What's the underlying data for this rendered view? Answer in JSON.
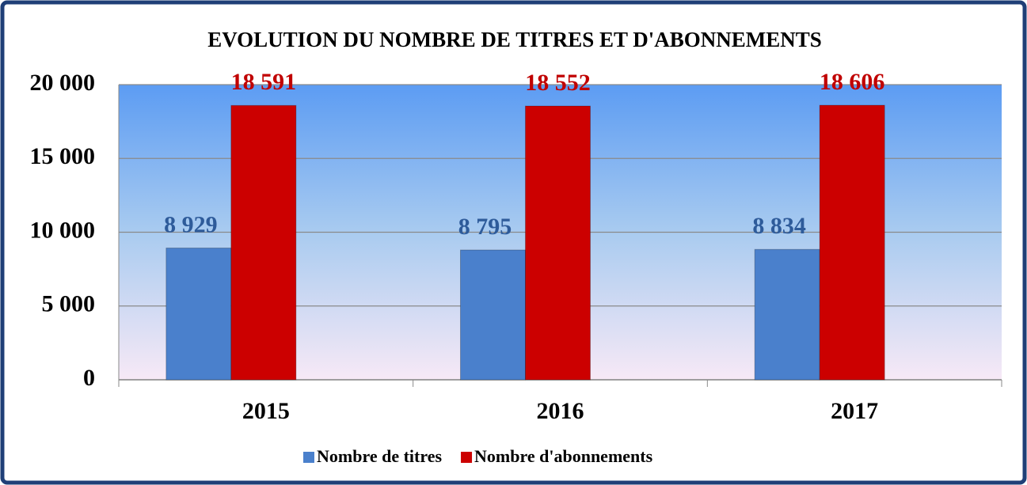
{
  "chart_data": {
    "type": "bar",
    "title": "EVOLUTION DU NOMBRE DE TITRES ET D'ABONNEMENTS",
    "categories": [
      "2015",
      "2016",
      "2017"
    ],
    "series": [
      {
        "name": "Nombre de titres",
        "color": "#4a80cc",
        "label_color": "#2e5b9a",
        "values": [
          8929,
          8795,
          8834
        ],
        "value_labels": [
          "8 929",
          "8 795",
          "8 834"
        ]
      },
      {
        "name": "Nombre d'abonnements",
        "color": "#cc0000",
        "label_color": "#c00000",
        "values": [
          18591,
          18552,
          18606
        ],
        "value_labels": [
          "18 591",
          "18 552",
          "18 606"
        ]
      }
    ],
    "ylim": [
      0,
      20000
    ],
    "yticks": [
      {
        "value": 0,
        "label": "0"
      },
      {
        "value": 5000,
        "label": "5 000"
      },
      {
        "value": 10000,
        "label": "10 000"
      },
      {
        "value": 15000,
        "label": "15 000"
      },
      {
        "value": 20000,
        "label": "20 000"
      }
    ],
    "grid": true,
    "legend": "bottom"
  }
}
